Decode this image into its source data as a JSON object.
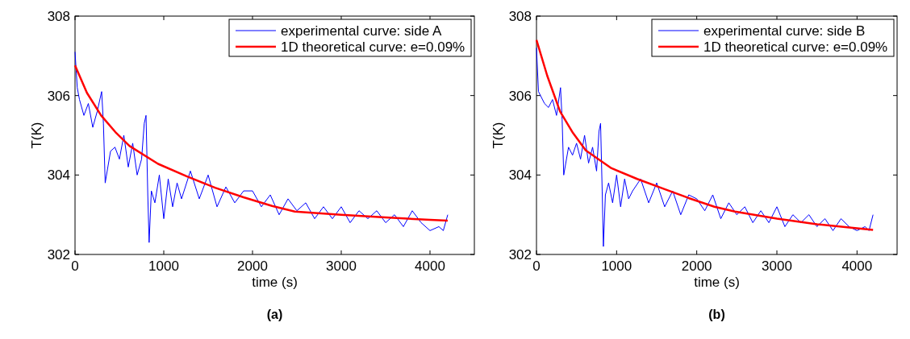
{
  "chart_data": [
    {
      "type": "line",
      "annotations": [
        "(a)"
      ],
      "xlabel": "time (s)",
      "ylabel": "T(K)",
      "xlim": [
        0,
        4500
      ],
      "xticks": [
        0,
        1000,
        2000,
        3000,
        4000
      ],
      "ylim": [
        302,
        308
      ],
      "yticks": [
        302,
        304,
        306,
        308
      ],
      "legend": "top right",
      "grid": false,
      "x": [
        0,
        25,
        50,
        100,
        150,
        200,
        250,
        300,
        320,
        340,
        400,
        450,
        500,
        550,
        600,
        650,
        700,
        750,
        780,
        800,
        820,
        835,
        860,
        900,
        950,
        1000,
        1050,
        1100,
        1150,
        1200,
        1300,
        1400,
        1500,
        1600,
        1700,
        1800,
        1900,
        2000,
        2100,
        2200,
        2300,
        2400,
        2500,
        2600,
        2700,
        2800,
        2900,
        3000,
        3100,
        3200,
        3300,
        3400,
        3500,
        3600,
        3700,
        3800,
        3900,
        4000,
        4100,
        4150,
        4200
      ],
      "series": [
        {
          "name": "experimental curve: side A",
          "color": "#0000ff",
          "values": [
            307.1,
            306.2,
            305.9,
            305.5,
            305.8,
            305.2,
            305.6,
            306.1,
            305.3,
            303.8,
            304.6,
            304.7,
            304.4,
            305.0,
            304.2,
            304.8,
            304.0,
            304.4,
            305.3,
            305.5,
            303.5,
            302.3,
            303.6,
            303.3,
            304.0,
            302.9,
            303.9,
            303.2,
            303.8,
            303.4,
            304.1,
            303.4,
            304.0,
            303.2,
            303.7,
            303.3,
            303.6,
            303.6,
            303.2,
            303.5,
            303.0,
            303.4,
            303.1,
            303.3,
            302.9,
            303.2,
            302.9,
            303.2,
            302.8,
            303.1,
            302.9,
            303.1,
            302.8,
            303.0,
            302.7,
            303.1,
            302.8,
            302.6,
            302.7,
            302.6,
            303.0
          ]
        },
        {
          "name": "1D theoretical curve: e=0.09%",
          "color": "#ff0000",
          "x": [
            0,
            134,
            294,
            455,
            615,
            936,
            1257,
            1578,
            1899,
            2220,
            2477,
            3000,
            3500,
            4000,
            4200
          ],
          "values": [
            306.76,
            306.07,
            305.5,
            305.08,
            304.73,
            304.28,
            303.97,
            303.68,
            303.44,
            303.22,
            303.08,
            303.0,
            302.93,
            302.87,
            302.85
          ]
        }
      ]
    },
    {
      "type": "line",
      "annotations": [
        "(b)"
      ],
      "xlabel": "time (s)",
      "ylabel": "T(K)",
      "xlim": [
        0,
        4500
      ],
      "xticks": [
        0,
        1000,
        2000,
        3000,
        4000
      ],
      "ylim": [
        302,
        308
      ],
      "yticks": [
        302,
        304,
        306,
        308
      ],
      "legend": "top right",
      "grid": false,
      "x": [
        0,
        25,
        50,
        100,
        150,
        200,
        250,
        300,
        320,
        340,
        400,
        450,
        500,
        550,
        600,
        650,
        700,
        750,
        780,
        800,
        820,
        835,
        860,
        900,
        950,
        1000,
        1050,
        1100,
        1150,
        1200,
        1300,
        1400,
        1500,
        1600,
        1700,
        1800,
        1900,
        2000,
        2100,
        2200,
        2300,
        2400,
        2500,
        2600,
        2700,
        2800,
        2900,
        3000,
        3100,
        3200,
        3300,
        3400,
        3500,
        3600,
        3700,
        3800,
        3900,
        4000,
        4100,
        4150,
        4200
      ],
      "series": [
        {
          "name": "experimental curve: side B",
          "color": "#0000ff",
          "values": [
            307.2,
            306.1,
            306.0,
            305.8,
            305.7,
            305.9,
            305.5,
            306.2,
            305.4,
            304.0,
            304.7,
            304.5,
            304.8,
            304.4,
            305.0,
            304.3,
            304.7,
            304.1,
            305.1,
            305.3,
            303.6,
            302.2,
            303.5,
            303.8,
            303.3,
            304.0,
            303.2,
            303.9,
            303.4,
            303.6,
            303.9,
            303.3,
            303.8,
            303.2,
            303.6,
            303.0,
            303.5,
            303.4,
            303.1,
            303.5,
            302.9,
            303.3,
            303.0,
            303.2,
            302.8,
            303.1,
            302.8,
            303.2,
            302.7,
            303.0,
            302.8,
            303.0,
            302.7,
            302.9,
            302.6,
            302.9,
            302.7,
            302.6,
            302.7,
            302.6,
            303.0
          ]
        },
        {
          "name": "1D theoretical curve: e=0.09%",
          "color": "#ff0000",
          "x": [
            0,
            134,
            294,
            455,
            615,
            936,
            1257,
            1578,
            1899,
            2220,
            2477,
            3000,
            3500,
            4000,
            4200
          ],
          "values": [
            307.4,
            306.5,
            305.6,
            305.06,
            304.62,
            304.17,
            303.9,
            303.66,
            303.42,
            303.2,
            303.08,
            302.9,
            302.76,
            302.66,
            302.62
          ]
        }
      ]
    }
  ]
}
